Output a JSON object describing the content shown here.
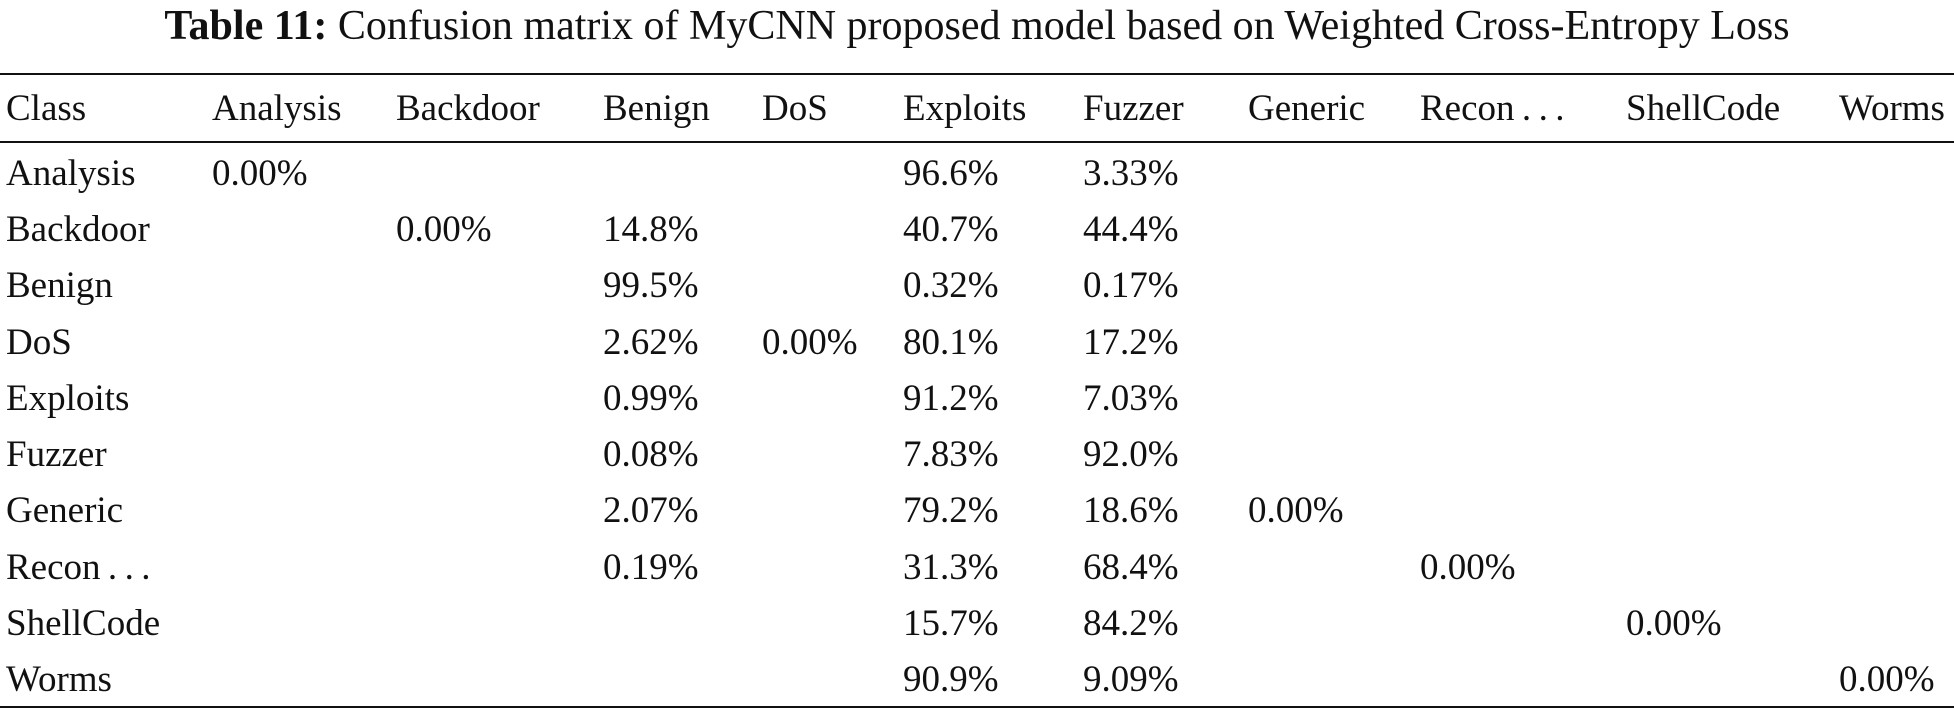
{
  "caption": {
    "label": "Table 11:",
    "text": "Confusion matrix of MyCNN proposed model based on Weighted Cross-Entropy Loss"
  },
  "table": {
    "headers": [
      "Class",
      "Analysis",
      "Backdoor",
      "Benign",
      "DoS",
      "Exploits",
      "Fuzzer",
      "Generic",
      "Recon . . .",
      "ShellCode",
      "Worms"
    ],
    "rows": [
      [
        "Analysis",
        "0.00%",
        "",
        "",
        "",
        "96.6%",
        "3.33%",
        "",
        "",
        "",
        ""
      ],
      [
        "Backdoor",
        "",
        "0.00%",
        "14.8%",
        "",
        "40.7%",
        "44.4%",
        "",
        "",
        "",
        ""
      ],
      [
        "Benign",
        "",
        "",
        "99.5%",
        "",
        "0.32%",
        "0.17%",
        "",
        "",
        "",
        ""
      ],
      [
        "DoS",
        "",
        "",
        "2.62%",
        "0.00%",
        "80.1%",
        "17.2%",
        "",
        "",
        "",
        ""
      ],
      [
        "Exploits",
        "",
        "",
        "0.99%",
        "",
        "91.2%",
        "7.03%",
        "",
        "",
        "",
        ""
      ],
      [
        "Fuzzer",
        "",
        "",
        "0.08%",
        "",
        "7.83%",
        "92.0%",
        "",
        "",
        "",
        ""
      ],
      [
        "Generic",
        "",
        "",
        "2.07%",
        "",
        "79.2%",
        "18.6%",
        "0.00%",
        "",
        "",
        ""
      ],
      [
        "Recon . . .",
        "",
        "",
        "0.19%",
        "",
        "31.3%",
        "68.4%",
        "",
        "0.00%",
        "",
        ""
      ],
      [
        "ShellCode",
        "",
        "",
        "",
        "",
        "15.7%",
        "84.2%",
        "",
        "",
        "0.00%",
        ""
      ],
      [
        "Worms",
        "",
        "",
        "",
        "",
        "90.9%",
        "9.09%",
        "",
        "",
        "",
        "0.00%"
      ]
    ]
  }
}
